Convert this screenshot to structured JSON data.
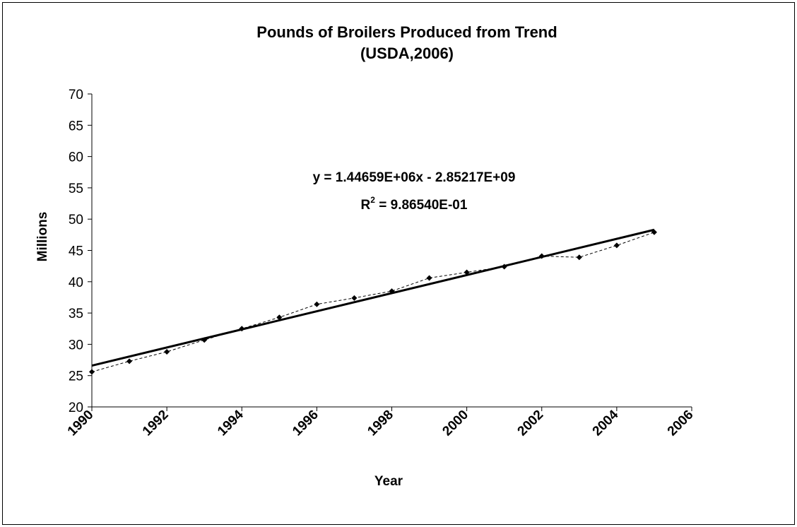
{
  "chart_data": {
    "type": "line",
    "title": "Pounds of Broilers Produced from Trend",
    "subtitle": "(USDA,2006)",
    "xlabel": "Year",
    "ylabel": "Millions",
    "xlim": [
      1990,
      2006
    ],
    "ylim": [
      20,
      70
    ],
    "x_ticks": [
      1990,
      1992,
      1994,
      1996,
      1998,
      2000,
      2002,
      2004,
      2006
    ],
    "y_ticks": [
      20,
      25,
      30,
      35,
      40,
      45,
      50,
      55,
      60,
      65,
      70
    ],
    "grid": false,
    "series": [
      {
        "style": "dashed-with-diamond-markers",
        "color": "#000000",
        "x": [
          1990,
          1991,
          1992,
          1993,
          1994,
          1995,
          1996,
          1997,
          1998,
          1999,
          2000,
          2001,
          2002,
          2003,
          2004,
          2005
        ],
        "values": [
          25.6,
          27.3,
          28.8,
          30.7,
          32.5,
          34.3,
          36.4,
          37.4,
          38.5,
          40.6,
          41.5,
          42.4,
          44.1,
          43.9,
          45.8,
          47.9
        ]
      },
      {
        "style": "solid-trendline",
        "color": "#000000",
        "x": [
          1990,
          2005
        ],
        "values": [
          26.6,
          48.3
        ]
      }
    ],
    "annotations": {
      "equation": "y = 1.44659E+06x - 2.85217E+09",
      "r2_prefix": "R",
      "r2_sup": "2",
      "r2_value": " = 9.86540E-01"
    }
  }
}
